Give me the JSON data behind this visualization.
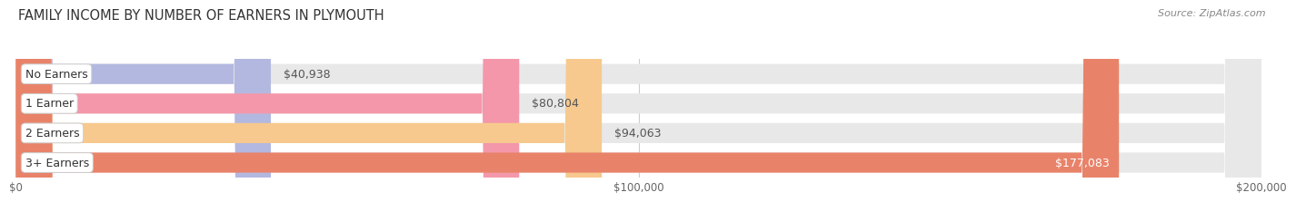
{
  "title": "FAMILY INCOME BY NUMBER OF EARNERS IN PLYMOUTH",
  "source": "Source: ZipAtlas.com",
  "categories": [
    "No Earners",
    "1 Earner",
    "2 Earners",
    "3+ Earners"
  ],
  "values": [
    40938,
    80804,
    94063,
    177083
  ],
  "labels": [
    "$40,938",
    "$80,804",
    "$94,063",
    "$177,083"
  ],
  "bar_colors": [
    "#b3b8e0",
    "#f497aa",
    "#f7c98e",
    "#e8836a"
  ],
  "bar_bg_color": "#e8e8e8",
  "label_colors": [
    "#555555",
    "#555555",
    "#555555",
    "#ffffff"
  ],
  "xlim": [
    0,
    200000
  ],
  "xtick_labels": [
    "$0",
    "$100,000",
    "$200,000"
  ],
  "fig_bg_color": "#ffffff",
  "title_fontsize": 10.5,
  "bar_height": 0.68,
  "label_fontsize": 9,
  "category_fontsize": 9,
  "title_color": "#333333",
  "source_color": "#888888",
  "grid_color": "#cccccc"
}
